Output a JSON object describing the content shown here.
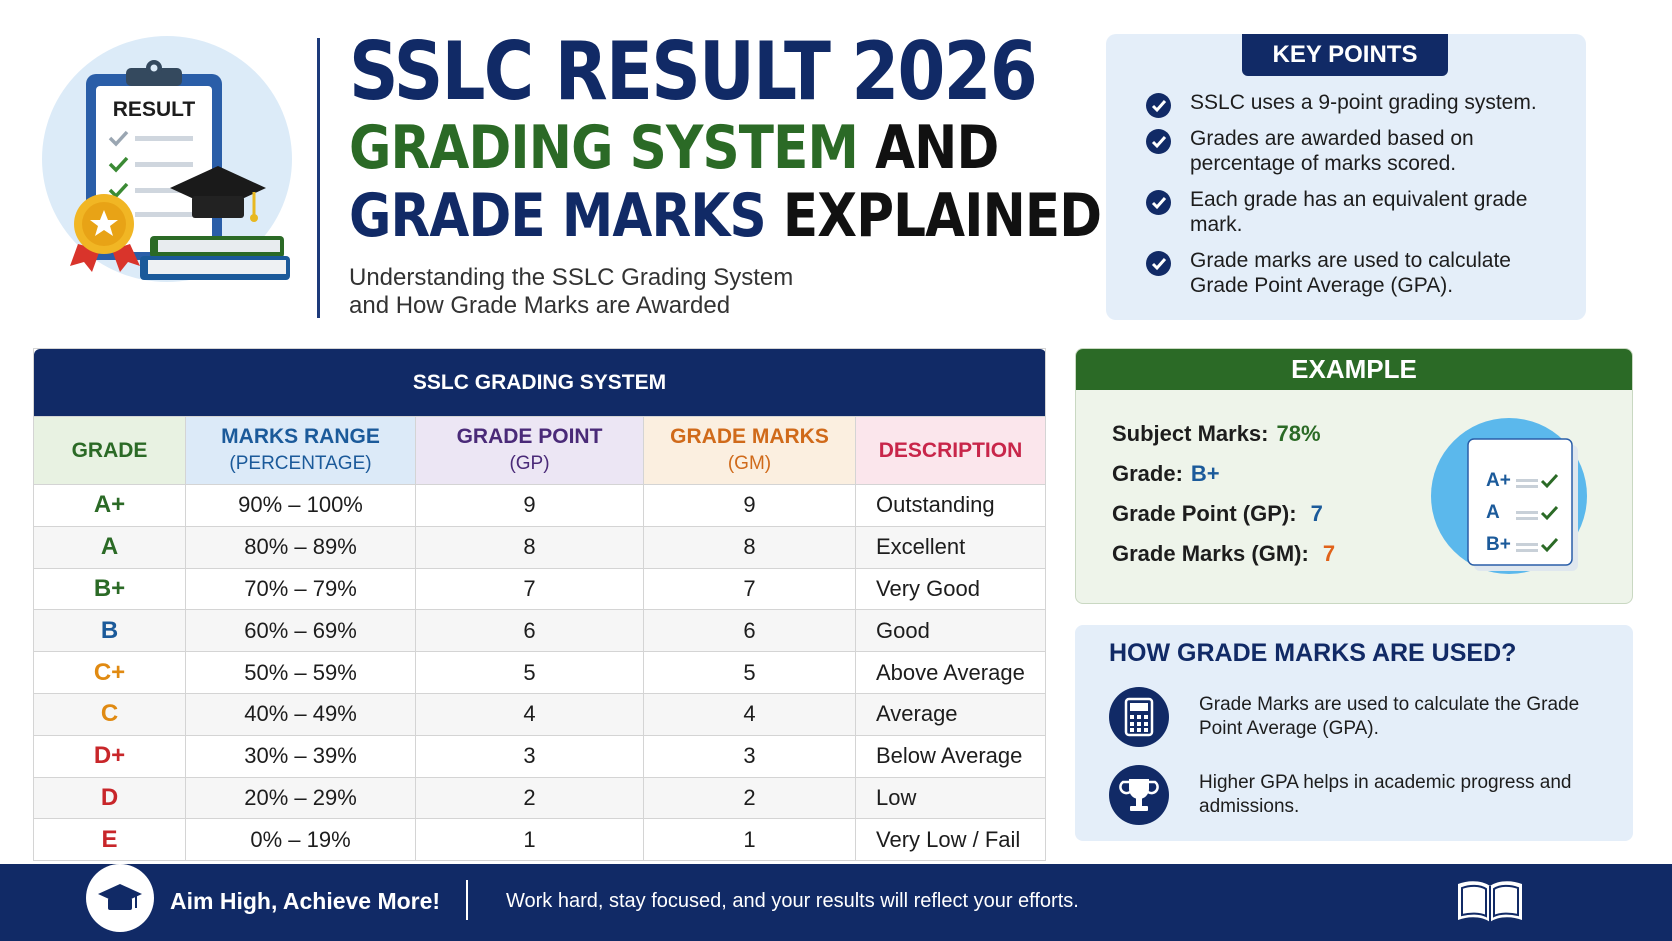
{
  "illustration": {
    "clipboard_label": "RESULT"
  },
  "header": {
    "title_line1": "SSLC RESULT 2026",
    "title_line2_a": "GRADING SYSTEM",
    "title_line2_b": "AND",
    "title_line3_a": "GRADE MARKS",
    "title_line3_b": "EXPLAINED",
    "subtitle_line1": "Understanding the SSLC Grading System",
    "subtitle_line2": "and How Grade Marks are Awarded"
  },
  "key_points": {
    "title": "KEY POINTS",
    "items": [
      "SSLC uses a 9-point grading system.",
      "Grades are awarded based on percentage of marks scored.",
      "Each grade has an equivalent grade mark.",
      "Grade marks are used to calculate Grade Point Average (GPA)."
    ]
  },
  "table": {
    "title": "SSLC GRADING SYSTEM",
    "headers": {
      "grade": "GRADE",
      "range": "MARKS RANGE",
      "range_sub": "(PERCENTAGE)",
      "gp": "GRADE POINT",
      "gp_sub": "(GP)",
      "gm": "GRADE MARKS",
      "gm_sub": "(GM)",
      "desc": "DESCRIPTION"
    },
    "rows": [
      {
        "grade": "A+",
        "range": "90% – 100%",
        "gp": "9",
        "gm": "9",
        "desc": "Outstanding",
        "color": "#2b6a26"
      },
      {
        "grade": "A",
        "range": "80% – 89%",
        "gp": "8",
        "gm": "8",
        "desc": "Excellent",
        "color": "#2b6a26"
      },
      {
        "grade": "B+",
        "range": "70% – 79%",
        "gp": "7",
        "gm": "7",
        "desc": "Very Good",
        "color": "#2b6a26"
      },
      {
        "grade": "B",
        "range": "60% – 69%",
        "gp": "6",
        "gm": "6",
        "desc": "Good",
        "color": "#1b5a9a"
      },
      {
        "grade": "C+",
        "range": "50% – 59%",
        "gp": "5",
        "gm": "5",
        "desc": "Above Average",
        "color": "#e08a12"
      },
      {
        "grade": "C",
        "range": "40% – 49%",
        "gp": "4",
        "gm": "4",
        "desc": "Average",
        "color": "#e08a12"
      },
      {
        "grade": "D+",
        "range": "30% – 39%",
        "gp": "3",
        "gm": "3",
        "desc": "Below Average",
        "color": "#c8262a"
      },
      {
        "grade": "D",
        "range": "20% – 29%",
        "gp": "2",
        "gm": "2",
        "desc": "Low",
        "color": "#c8262a"
      },
      {
        "grade": "E",
        "range": "0% – 19%",
        "gp": "1",
        "gm": "1",
        "desc": "Very Low / Fail",
        "color": "#c8262a"
      }
    ]
  },
  "example": {
    "title": "EXAMPLE",
    "subject_label": "Subject Marks:",
    "subject_value": "78%",
    "grade_label": "Grade:",
    "grade_value": "B+",
    "gp_label": "Grade Point (GP):",
    "gp_value": "7",
    "gm_label": "Grade Marks (GM):",
    "gm_value": "7",
    "card_grades": [
      "A+",
      "A",
      "B+"
    ]
  },
  "how_used": {
    "title": "HOW GRADE MARKS ARE USED?",
    "item1": "Grade Marks are used to calculate the Grade Point Average (GPA).",
    "item2": "Higher GPA helps in academic progress and admissions."
  },
  "footer": {
    "slogan": "Aim High, Achieve More!",
    "message": "Work hard, stay focused, and your results will reflect your efforts."
  },
  "colors": {
    "navy": "#112a66",
    "green": "#2b6a26",
    "orange": "#e08a12",
    "red": "#c8262a",
    "blue": "#1b5a9a"
  }
}
